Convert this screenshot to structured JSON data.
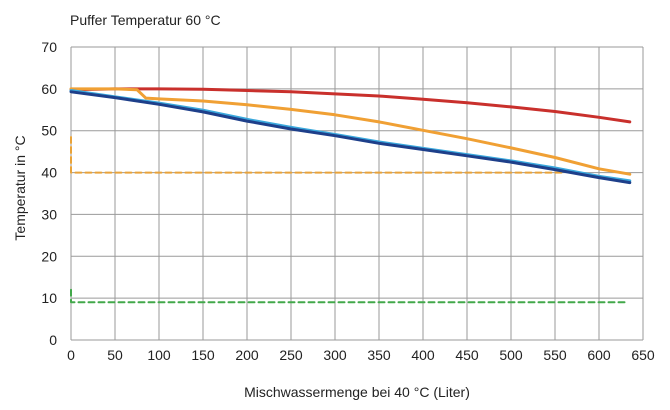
{
  "chart_data": {
    "type": "line",
    "title": "Puffer Temperatur 60 °C",
    "xlabel": "Mischwassermenge bei 40 °C (Liter)",
    "ylabel": "Temperatur in °C",
    "xlim": [
      0,
      650
    ],
    "ylim": [
      0,
      70
    ],
    "xticks": [
      0,
      50,
      100,
      150,
      200,
      250,
      300,
      350,
      400,
      450,
      500,
      550,
      600,
      650
    ],
    "yticks": [
      0,
      10,
      20,
      30,
      40,
      50,
      60,
      70
    ],
    "grid": true,
    "legend": "none",
    "series": [
      {
        "color": "#e9a33a",
        "style": "dashed",
        "points": [
          [
            0,
            48.5
          ],
          [
            0,
            40
          ],
          [
            50,
            40
          ],
          [
            100,
            40
          ],
          [
            200,
            40
          ],
          [
            300,
            40
          ],
          [
            400,
            40
          ],
          [
            500,
            40
          ],
          [
            560,
            40
          ]
        ]
      },
      {
        "color": "#42a84a",
        "style": "dashed",
        "points": [
          [
            0,
            12
          ],
          [
            0,
            9
          ],
          [
            100,
            9
          ],
          [
            200,
            9
          ],
          [
            300,
            9
          ],
          [
            400,
            9
          ],
          [
            500,
            9
          ],
          [
            600,
            9
          ],
          [
            630,
            9
          ]
        ]
      },
      {
        "color": "#c9302c",
        "style": "solid",
        "points": [
          [
            0,
            59.8
          ],
          [
            50,
            60
          ],
          [
            100,
            60
          ],
          [
            150,
            59.9
          ],
          [
            200,
            59.6
          ],
          [
            250,
            59.3
          ],
          [
            300,
            58.8
          ],
          [
            350,
            58.3
          ],
          [
            400,
            57.5
          ],
          [
            450,
            56.7
          ],
          [
            500,
            55.7
          ],
          [
            550,
            54.6
          ],
          [
            600,
            53.2
          ],
          [
            635,
            52.1
          ]
        ]
      },
      {
        "color": "#f0a034",
        "style": "solid",
        "points": [
          [
            0,
            60
          ],
          [
            50,
            60
          ],
          [
            75,
            59.8
          ],
          [
            85,
            57.8
          ],
          [
            100,
            57.6
          ],
          [
            150,
            57.1
          ],
          [
            200,
            56.2
          ],
          [
            250,
            55.1
          ],
          [
            300,
            53.8
          ],
          [
            350,
            52.1
          ],
          [
            400,
            50.1
          ],
          [
            450,
            48.1
          ],
          [
            500,
            45.9
          ],
          [
            550,
            43.6
          ],
          [
            600,
            40.9
          ],
          [
            635,
            39.6
          ]
        ]
      },
      {
        "color": "#3aa8dc",
        "style": "solid",
        "points": [
          [
            0,
            59.6
          ],
          [
            50,
            58.1
          ],
          [
            100,
            56.6
          ],
          [
            150,
            54.9
          ],
          [
            200,
            52.7
          ],
          [
            250,
            50.8
          ],
          [
            300,
            49.1
          ],
          [
            350,
            47.3
          ],
          [
            400,
            45.8
          ],
          [
            450,
            44.3
          ],
          [
            500,
            42.8
          ],
          [
            550,
            41.1
          ],
          [
            600,
            39.1
          ],
          [
            635,
            38
          ]
        ]
      },
      {
        "color": "#1e3f8a",
        "style": "solid",
        "points": [
          [
            0,
            59.3
          ],
          [
            50,
            57.9
          ],
          [
            100,
            56.3
          ],
          [
            150,
            54.5
          ],
          [
            200,
            52.3
          ],
          [
            250,
            50.4
          ],
          [
            300,
            48.8
          ],
          [
            350,
            47
          ],
          [
            400,
            45.5
          ],
          [
            450,
            44
          ],
          [
            500,
            42.5
          ],
          [
            550,
            40.7
          ],
          [
            600,
            38.8
          ],
          [
            635,
            37.6
          ]
        ]
      }
    ]
  }
}
